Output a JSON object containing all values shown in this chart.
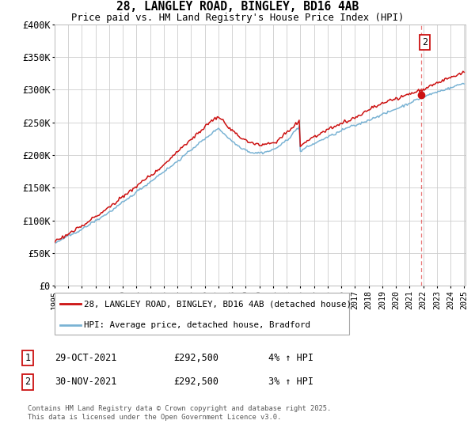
{
  "title_line1": "28, LANGLEY ROAD, BINGLEY, BD16 4AB",
  "title_line2": "Price paid vs. HM Land Registry's House Price Index (HPI)",
  "ylim": [
    0,
    400000
  ],
  "yticks": [
    0,
    50000,
    100000,
    150000,
    200000,
    250000,
    300000,
    350000,
    400000
  ],
  "ytick_labels": [
    "£0",
    "£50K",
    "£100K",
    "£150K",
    "£200K",
    "£250K",
    "£300K",
    "£350K",
    "£400K"
  ],
  "hpi_color": "#7ab3d4",
  "price_color": "#cc1111",
  "dot_color": "#cc1111",
  "background_color": "#ffffff",
  "plot_bg_color": "#ffffff",
  "grid_color": "#cccccc",
  "legend1_label": "28, LANGLEY ROAD, BINGLEY, BD16 4AB (detached house)",
  "legend2_label": "HPI: Average price, detached house, Bradford",
  "table_rows": [
    {
      "num": "1",
      "date": "29-OCT-2021",
      "price": "£292,500",
      "change": "4% ↑ HPI"
    },
    {
      "num": "2",
      "date": "30-NOV-2021",
      "price": "£292,500",
      "change": "3% ↑ HPI"
    }
  ],
  "footnote": "Contains HM Land Registry data © Crown copyright and database right 2025.\nThis data is licensed under the Open Government Licence v3.0.",
  "transaction_year": 2021,
  "transaction_month": 11,
  "transaction_price": 292500,
  "start_year": 1995,
  "end_year": 2025
}
